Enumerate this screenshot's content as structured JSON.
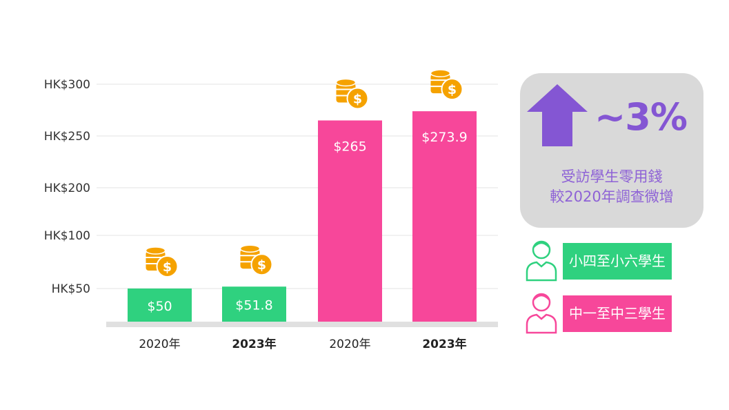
{
  "chart_data": {
    "type": "bar",
    "title": "",
    "categories": [
      "2020年",
      "2023年",
      "2020年",
      "2023年"
    ],
    "category_bold": [
      false,
      true,
      false,
      true
    ],
    "values": [
      50,
      51.8,
      265,
      273.9
    ],
    "data_labels": [
      "$50",
      "$51.8",
      "$265",
      "$273.9"
    ],
    "series_group": [
      "小四至小六學生",
      "小四至小六學生",
      "中一至中三學生",
      "中一至中三學生"
    ],
    "y_ticks": [
      50,
      100,
      200,
      250,
      300
    ],
    "y_tick_labels": [
      "HK$50",
      "HK$100",
      "HK$200",
      "HK$250",
      "HK$300"
    ],
    "xlabel": "",
    "ylabel": "",
    "grid": true,
    "legend": [
      {
        "label": "小四至小六學生",
        "color": "#2fd17f"
      },
      {
        "label": "中一至中三學生",
        "color": "#f7479a"
      }
    ],
    "legend_placement": "right"
  },
  "callout": {
    "percent": "~3%",
    "line1": "受訪學生零用錢",
    "line2": "較2020年調查微增"
  },
  "colors": {
    "green": "#2fd17f",
    "pink": "#f7479a",
    "purple": "#8456d3",
    "coin": "#f5a200",
    "panel": "#d9d9d9"
  }
}
